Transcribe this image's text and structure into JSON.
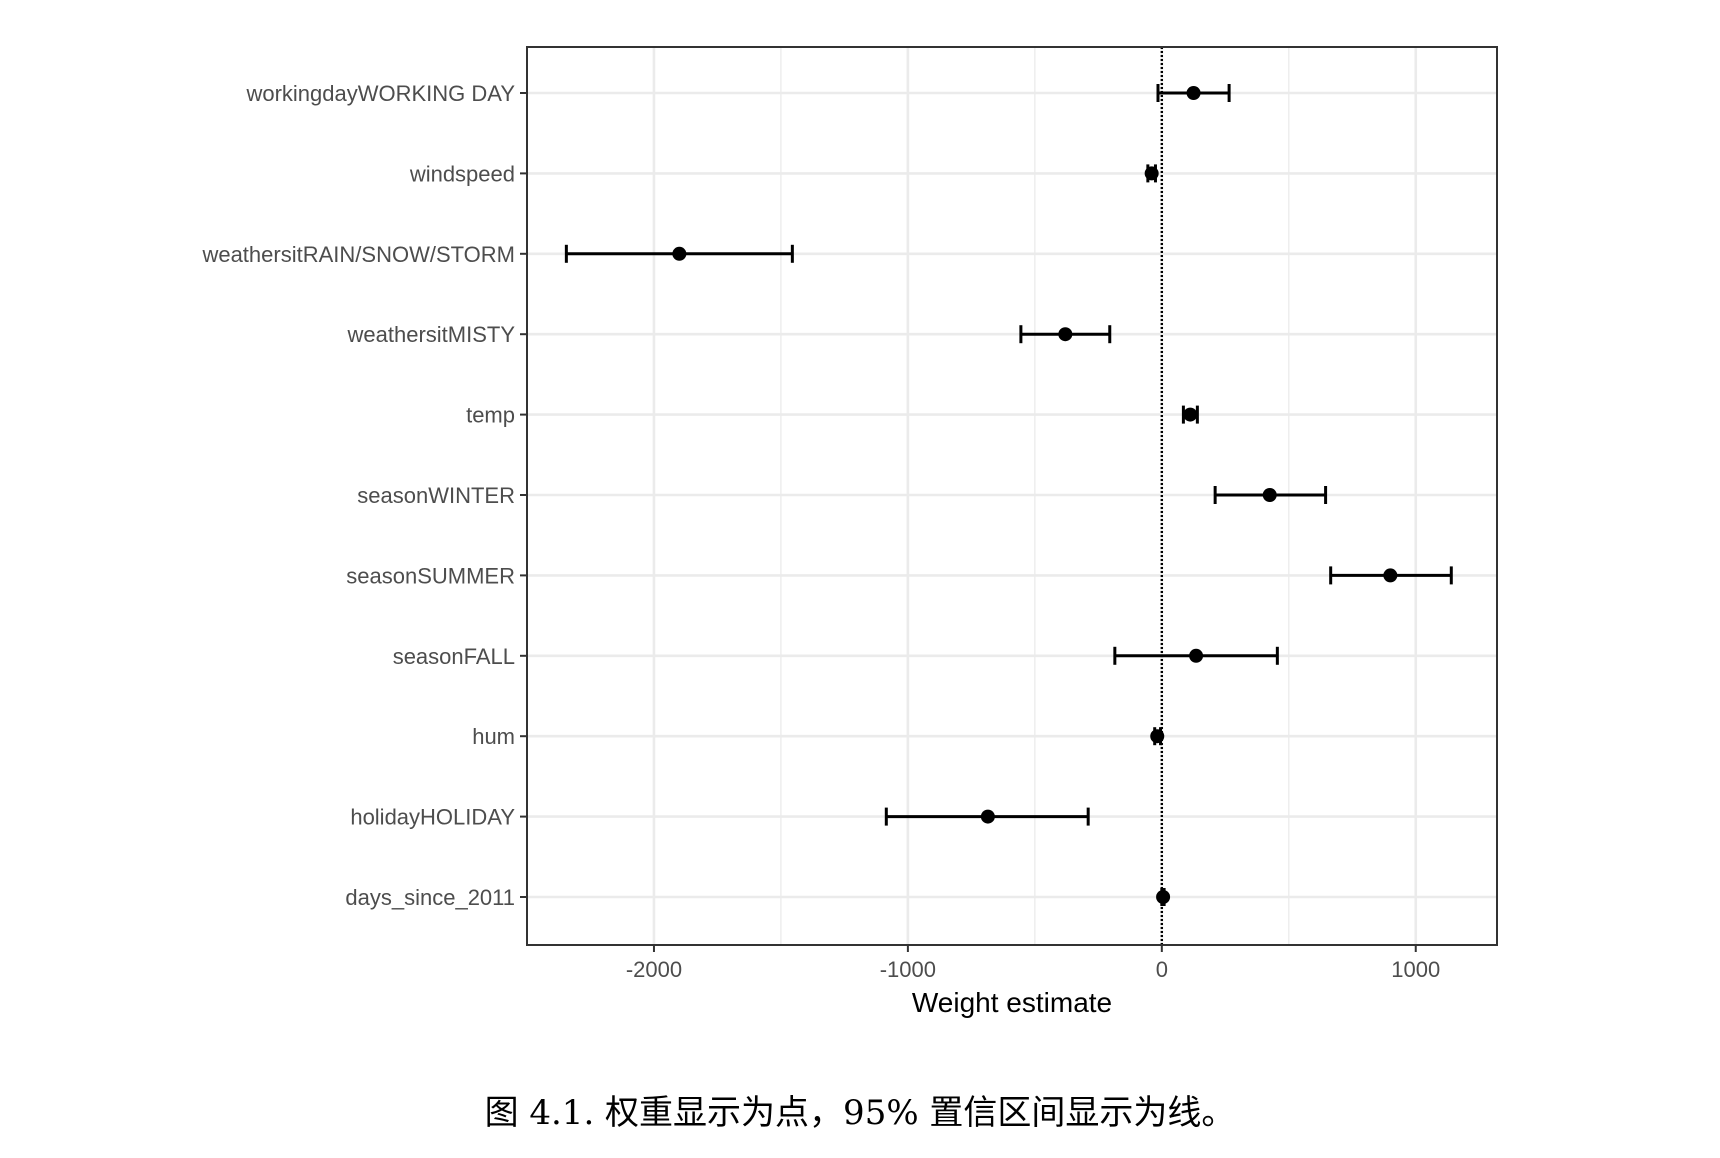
{
  "chart_data": {
    "type": "scatter",
    "subtype": "coefficient-plot-with-error-bars",
    "xlabel": "Weight estimate",
    "ylabel": "",
    "xlim": [
      -2500,
      1320
    ],
    "x_ticks": [
      -2000,
      -1000,
      0,
      1000
    ],
    "x_tick_labels": [
      "-2000",
      "-1000",
      "0",
      "1000"
    ],
    "reference_line": {
      "x": 0,
      "style": "dotted"
    },
    "grid": true,
    "categories": [
      "workingdayWORKING DAY",
      "windspeed",
      "weathersitRAIN/SNOW/STORM",
      "weathersitMISTY",
      "temp",
      "seasonWINTER",
      "seasonSUMMER",
      "seasonFALL",
      "hum",
      "holidayHOLIDAY",
      "days_since_2011"
    ],
    "estimates": [
      125,
      -40,
      -1900,
      -380,
      112,
      425,
      900,
      135,
      -18,
      -685,
      5
    ],
    "ci_lower": [
      -15,
      -55,
      -2345,
      -555,
      85,
      210,
      665,
      -185,
      -28,
      -1085,
      0
    ],
    "ci_upper": [
      265,
      -25,
      -1455,
      -205,
      140,
      645,
      1140,
      455,
      -5,
      -290,
      9
    ]
  },
  "caption": "图 4.1.  权重显示为点，95% 置信区间显示为线。",
  "colors": {
    "point": "#000000",
    "grid": "#ebebeb",
    "panel_border": "#333333"
  }
}
